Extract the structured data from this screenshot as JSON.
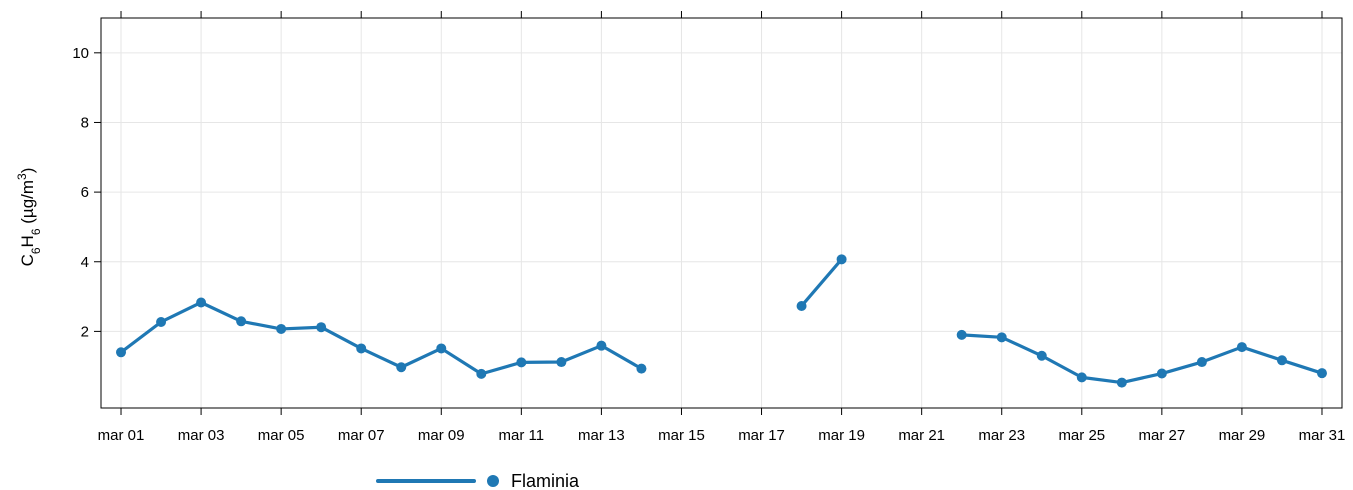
{
  "chart_data": {
    "type": "line",
    "title": "",
    "xlabel": "",
    "ylabel": {
      "prefix": "C",
      "sub1": "6",
      "middle": "H",
      "sub2": "6",
      "unit_open": " (µg/m",
      "sup": "3",
      "unit_close": ")"
    },
    "x_tick_labels": [
      "mar 01",
      "mar 03",
      "mar 05",
      "mar 07",
      "mar 09",
      "mar 11",
      "mar 13",
      "mar 15",
      "mar 17",
      "mar 19",
      "mar 21",
      "mar 23",
      "mar 25",
      "mar 27",
      "mar 29",
      "mar 31"
    ],
    "x_tick_days": [
      1,
      3,
      5,
      7,
      9,
      11,
      13,
      15,
      17,
      19,
      21,
      23,
      25,
      27,
      29,
      31
    ],
    "y_ticks": [
      2,
      4,
      6,
      8,
      10
    ],
    "xlim": [
      0.5,
      31.5
    ],
    "ylim": [
      -0.2,
      11.0
    ],
    "grid": true,
    "legend_position": "bottom",
    "series": [
      {
        "name": "Flaminia",
        "color": "#1f78b4",
        "x": [
          1,
          2,
          3,
          4,
          5,
          6,
          7,
          8,
          9,
          10,
          11,
          12,
          13,
          14,
          15,
          16,
          17,
          18,
          19,
          20,
          21,
          22,
          23,
          24,
          25,
          26,
          27,
          28,
          29,
          30,
          31
        ],
        "y": [
          1.4,
          2.27,
          2.83,
          2.29,
          2.07,
          2.12,
          1.51,
          0.97,
          1.51,
          0.78,
          1.11,
          1.12,
          1.59,
          0.93,
          null,
          null,
          null,
          2.73,
          4.07,
          null,
          null,
          1.9,
          1.83,
          1.3,
          0.68,
          0.53,
          0.79,
          1.12,
          1.55,
          1.17,
          0.8
        ]
      }
    ]
  }
}
